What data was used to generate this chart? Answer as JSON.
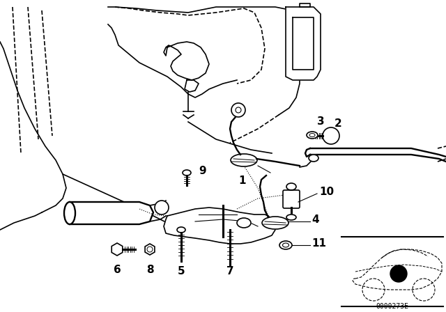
{
  "bg_color": "#ffffff",
  "line_color": "#000000",
  "diagram_code": "0000273E",
  "figsize": [
    6.4,
    4.48
  ],
  "dpi": 100
}
